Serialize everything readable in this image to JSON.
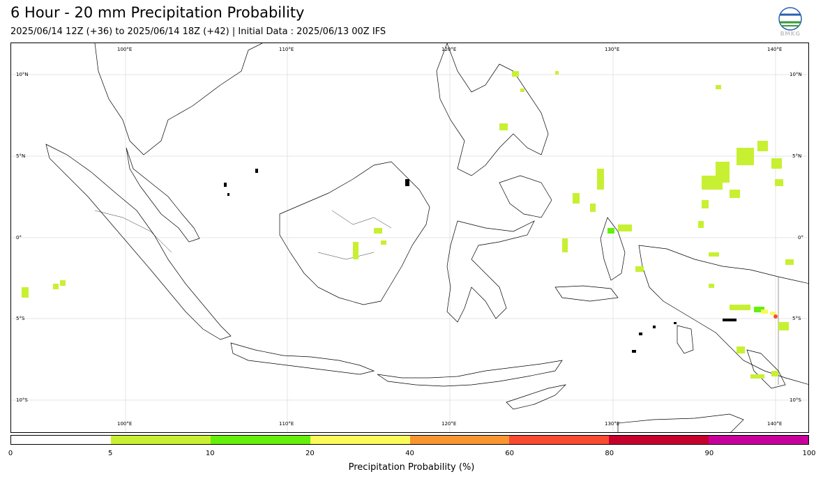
{
  "header": {
    "title": "6 Hour - 20 mm Precipitation Probability",
    "subtitle": "2025/06/14 12Z (+36) to 2025/06/14 18Z (+42) | Initial Data : 2025/06/13 00Z IFS",
    "logo_text": "BMKG"
  },
  "map": {
    "lon_labels": [
      "100°E",
      "110°E",
      "120°E",
      "130°E",
      "140°E"
    ],
    "lat_labels": [
      "10°N",
      "5°N",
      "0°",
      "5°S",
      "10°S"
    ],
    "coastline_color": "#000000",
    "grid_color": "#dddddd"
  },
  "colorbar": {
    "ticks": [
      "0",
      "5",
      "10",
      "20",
      "40",
      "60",
      "80",
      "90",
      "100"
    ],
    "colors": [
      "#ffffff",
      "#c8f032",
      "#64f00a",
      "#fafa5a",
      "#fa9632",
      "#fa4b32",
      "#c8002d",
      "#c8009b"
    ],
    "label": "Precipitation Probability (%)"
  }
}
